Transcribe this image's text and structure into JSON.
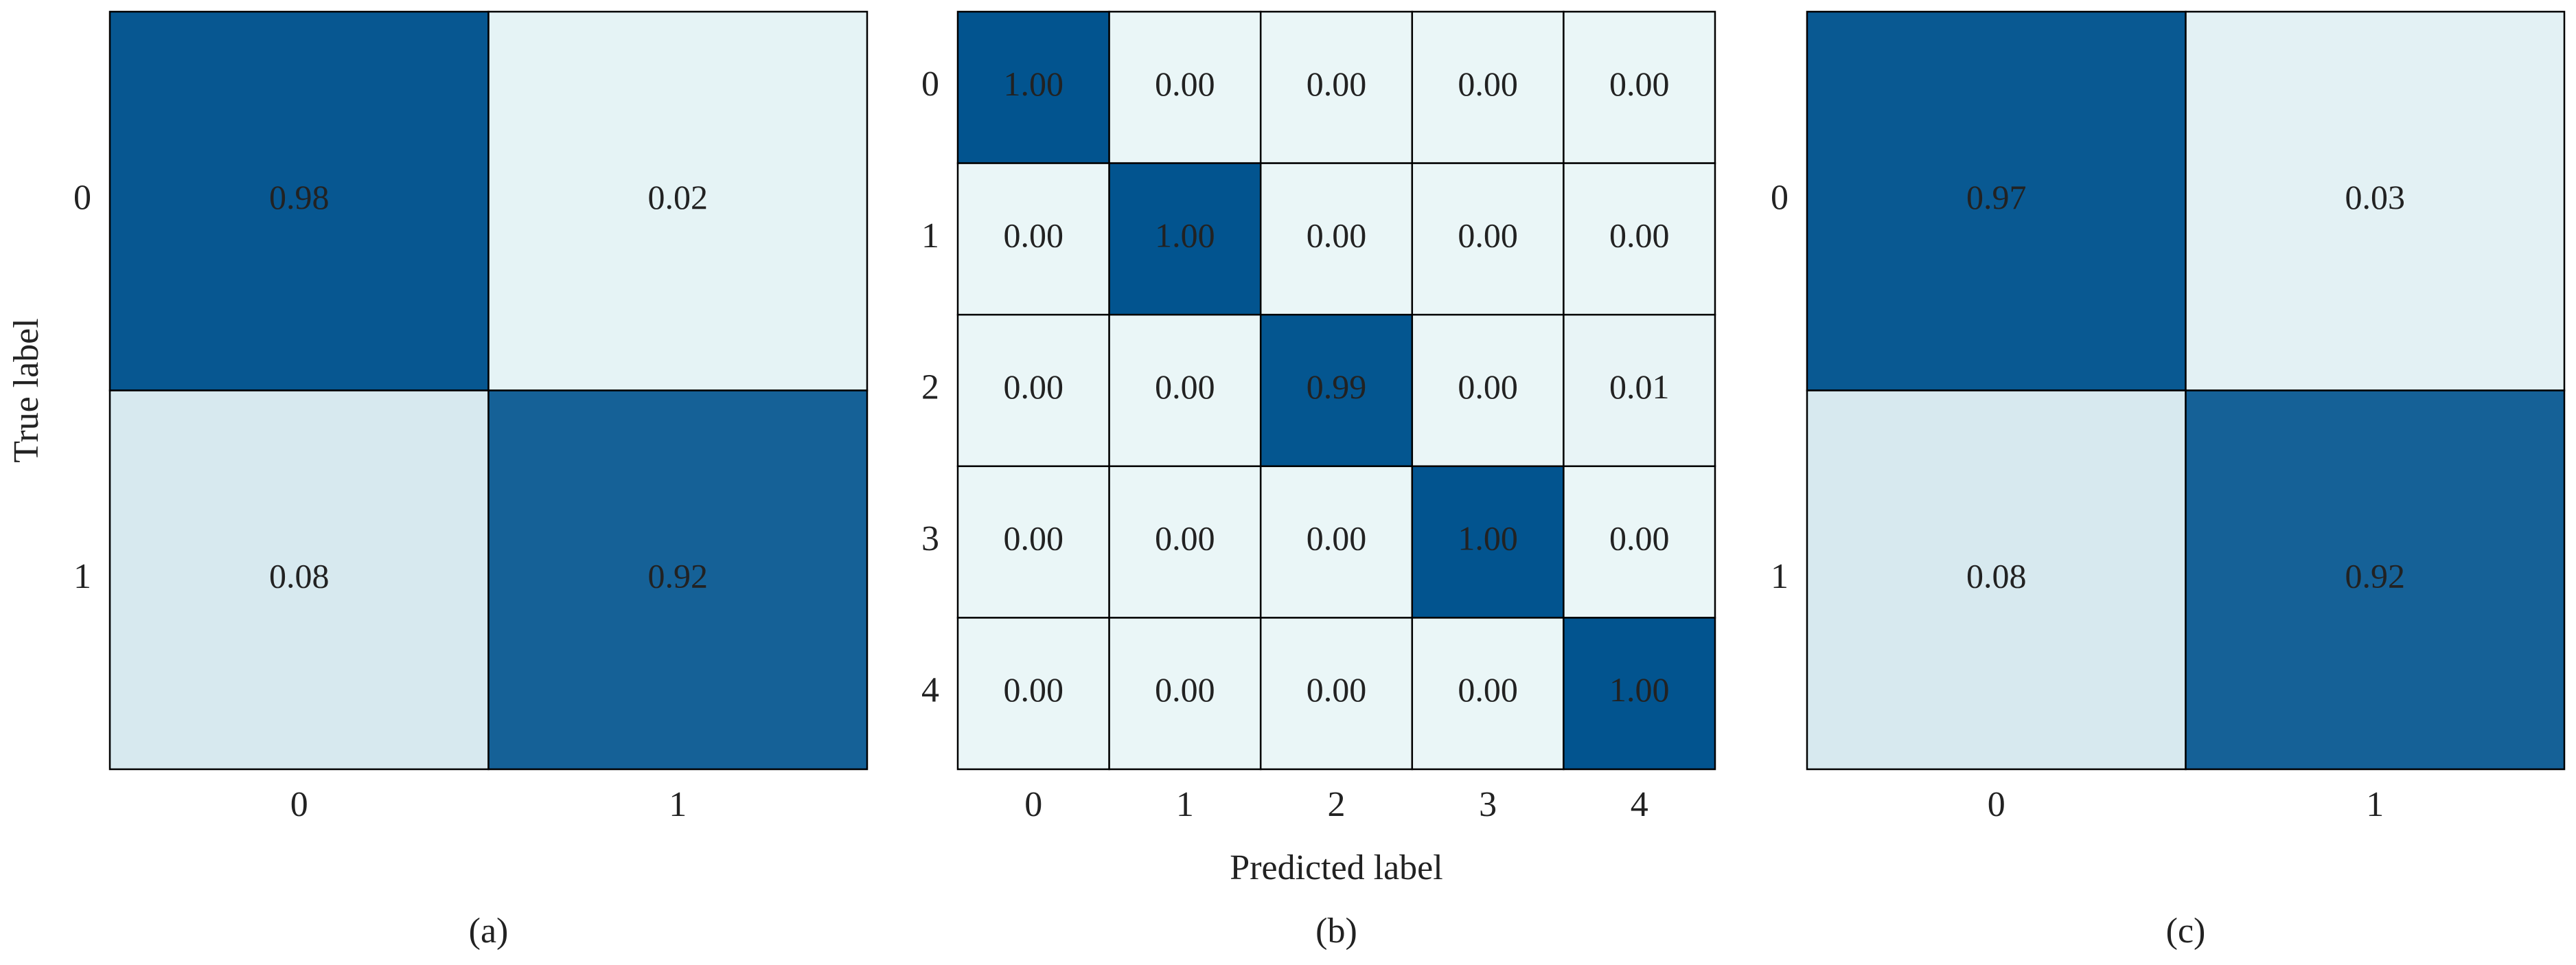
{
  "chart_data": [
    {
      "type": "heatmap",
      "caption": "(a)",
      "ylabel": "True label",
      "x_categories": [
        "0",
        "1"
      ],
      "y_categories": [
        "0",
        "1"
      ],
      "values": [
        [
          0.98,
          0.02
        ],
        [
          0.08,
          0.92
        ]
      ],
      "vlim": [
        0,
        1
      ],
      "colors": [
        "#eaf6f7",
        "#02548f"
      ]
    },
    {
      "type": "heatmap",
      "caption": "(b)",
      "xlabel": "Predicted label",
      "x_categories": [
        "0",
        "1",
        "2",
        "3",
        "4"
      ],
      "y_categories": [
        "0",
        "1",
        "2",
        "3",
        "4"
      ],
      "values": [
        [
          1,
          0,
          0,
          0,
          0
        ],
        [
          0,
          1,
          0,
          0,
          0
        ],
        [
          0,
          0,
          0.99,
          0,
          0.01
        ],
        [
          0,
          0,
          0,
          1,
          0
        ],
        [
          0,
          0,
          0,
          0,
          1
        ]
      ],
      "value_labels": [
        [
          "1.00",
          "0.00",
          "0.00",
          "0.00",
          "0.00"
        ],
        [
          "0.00",
          "1.00",
          "0.00",
          "0.00",
          "0.00"
        ],
        [
          "0.00",
          "0.00",
          "0.99",
          "0.00",
          "0.01"
        ],
        [
          "0.00",
          "0.00",
          "0.00",
          "1.00",
          "0.00"
        ],
        [
          "0.00",
          "0.00",
          "0.00",
          "0.00",
          "1.00"
        ]
      ],
      "vlim": [
        0,
        1
      ],
      "colors": [
        "#eaf6f7",
        "#02548f"
      ]
    },
    {
      "type": "heatmap",
      "caption": "(c)",
      "x_categories": [
        "0",
        "1"
      ],
      "y_categories": [
        "0",
        "1"
      ],
      "values": [
        [
          0.97,
          0.03
        ],
        [
          0.08,
          0.92
        ]
      ],
      "vlim": [
        0,
        1
      ],
      "colors": [
        "#eaf6f7",
        "#02548f"
      ]
    }
  ]
}
